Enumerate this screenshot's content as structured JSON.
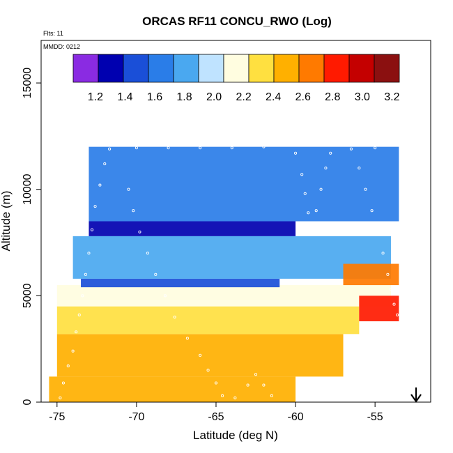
{
  "chart_data": {
    "type": "heatmap",
    "title": "ORCAS RF11 CONCU_RWO (Log)",
    "flights_label": "Flts: 11",
    "date_label": "MMDD: 0212",
    "xlabel": "Latitude (deg N)",
    "ylabel": "Altitude (m)",
    "xlim": [
      -76,
      -51.5
    ],
    "ylim": [
      0,
      17000
    ],
    "x_ticks": [
      -75,
      -70,
      -65,
      -60,
      -55
    ],
    "x_tick_labels": [
      "-75",
      "-70",
      "-65",
      "-60",
      "-55"
    ],
    "y_ticks": [
      0,
      5000,
      10000,
      15000
    ],
    "y_tick_labels": [
      "0",
      "5000",
      "10000",
      "15000"
    ],
    "colorbar": {
      "min": 1.05,
      "max": 3.25,
      "labels": [
        {
          "value": 1.2,
          "text": "1.2"
        },
        {
          "value": 1.4,
          "text": "1.4"
        },
        {
          "value": 1.6,
          "text": "1.6"
        },
        {
          "value": 1.8,
          "text": "1.8"
        },
        {
          "value": 2.0,
          "text": "2.0"
        },
        {
          "value": 2.2,
          "text": "2.2"
        },
        {
          "value": 2.4,
          "text": "2.4"
        },
        {
          "value": 2.6,
          "text": "2.6"
        },
        {
          "value": 2.8,
          "text": "2.8"
        },
        {
          "value": 3.0,
          "text": "3.0"
        },
        {
          "value": 3.2,
          "text": "3.2"
        }
      ],
      "colors": [
        "#8a2be2",
        "#0000b0",
        "#1a4fd8",
        "#2a7de8",
        "#4aa8f0",
        "#bfe3ff",
        "#fffde0",
        "#ffe040",
        "#ffb000",
        "#ff7a00",
        "#ff1a00",
        "#c40000",
        "#8b1010"
      ]
    },
    "flight_track": [
      [
        -74.8,
        200
      ],
      [
        -74.6,
        900
      ],
      [
        -74.3,
        1700
      ],
      [
        -74.0,
        2400
      ],
      [
        -73.8,
        3300
      ],
      [
        -73.6,
        4100
      ],
      [
        -73.4,
        5000
      ],
      [
        -73.2,
        6000
      ],
      [
        -73.0,
        7000
      ],
      [
        -72.8,
        8100
      ],
      [
        -72.6,
        9200
      ],
      [
        -72.3,
        10200
      ],
      [
        -72.0,
        11200
      ],
      [
        -71.7,
        11900
      ],
      [
        -70.0,
        11950
      ],
      [
        -68.0,
        11950
      ],
      [
        -66.0,
        11950
      ],
      [
        -64.0,
        11950
      ],
      [
        -62.0,
        12000
      ],
      [
        -60.0,
        12100
      ],
      [
        -58.0,
        12100
      ],
      [
        -56.0,
        12100
      ],
      [
        -55.0,
        11950
      ],
      [
        -70.5,
        10000
      ],
      [
        -70.2,
        9000
      ],
      [
        -69.8,
        8000
      ],
      [
        -69.3,
        7000
      ],
      [
        -68.8,
        6000
      ],
      [
        -68.2,
        5000
      ],
      [
        -67.6,
        4000
      ],
      [
        -66.8,
        3000
      ],
      [
        -66.0,
        2200
      ],
      [
        -65.5,
        1500
      ],
      [
        -65.0,
        900
      ],
      [
        -64.6,
        300
      ],
      [
        -63.8,
        200
      ],
      [
        -63.0,
        800
      ],
      [
        -62.5,
        1300
      ],
      [
        -62.0,
        800
      ],
      [
        -61.5,
        300
      ],
      [
        -60.0,
        11700
      ],
      [
        -59.6,
        10700
      ],
      [
        -59.4,
        9800
      ],
      [
        -59.2,
        8900
      ],
      [
        -59.0,
        8000
      ],
      [
        -58.7,
        9000
      ],
      [
        -58.4,
        10000
      ],
      [
        -58.1,
        11000
      ],
      [
        -57.8,
        11700
      ],
      [
        -56.5,
        11900
      ],
      [
        -56.0,
        11000
      ],
      [
        -55.6,
        10000
      ],
      [
        -55.2,
        9000
      ],
      [
        -54.8,
        8000
      ],
      [
        -54.5,
        7000
      ],
      [
        -54.2,
        6000
      ],
      [
        -54.0,
        5300
      ],
      [
        -53.8,
        4600
      ],
      [
        -53.6,
        4100
      ]
    ],
    "field_regions": [
      {
        "value": 2.55,
        "x": [
          -75.5,
          -60
        ],
        "y": [
          0,
          1200
        ]
      },
      {
        "value": 2.45,
        "x": [
          -75,
          -57
        ],
        "y": [
          1200,
          3200
        ]
      },
      {
        "value": 2.3,
        "x": [
          -75,
          -56
        ],
        "y": [
          3200,
          4500
        ]
      },
      {
        "value": 2.1,
        "x": [
          -75,
          -54
        ],
        "y": [
          4500,
          5500
        ]
      },
      {
        "value": 1.45,
        "x": [
          -73.5,
          -61
        ],
        "y": [
          5400,
          5800
        ]
      },
      {
        "value": 1.75,
        "x": [
          -74,
          -54
        ],
        "y": [
          5800,
          7800
        ]
      },
      {
        "value": 1.35,
        "x": [
          -73,
          -60
        ],
        "y": [
          7800,
          8500
        ]
      },
      {
        "value": 1.7,
        "x": [
          -73,
          -53.5
        ],
        "y": [
          8500,
          12000
        ]
      },
      {
        "value": 2.6,
        "x": [
          -57,
          -53.5
        ],
        "y": [
          5500,
          6500
        ]
      },
      {
        "value": 2.8,
        "x": [
          -56,
          -53.5
        ],
        "y": [
          3800,
          5000
        ]
      }
    ]
  }
}
